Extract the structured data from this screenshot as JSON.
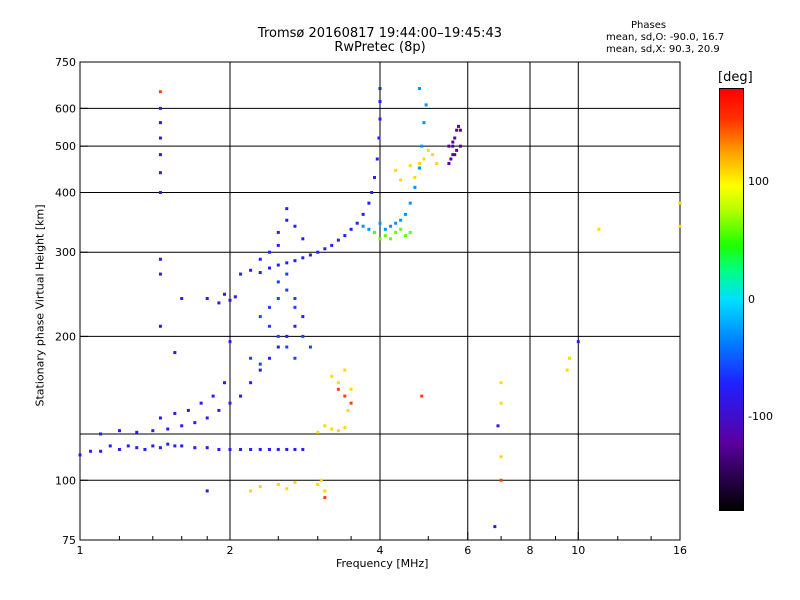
{
  "chart_data": {
    "type": "scatter",
    "title": "Tromsø 20160817 19:44:00–19:45:43",
    "subtitle": "RwPretec (8p)",
    "xlabel": "Frequency [MHz]",
    "ylabel": "Stationary phase Virtual Height [km]",
    "x_scale": "log",
    "y_scale": "log",
    "xlim": [
      1,
      16
    ],
    "ylim": [
      75,
      750
    ],
    "grid": true,
    "x_ticks": [
      {
        "value": 1,
        "label": "1"
      },
      {
        "value": 2,
        "label": "2"
      },
      {
        "value": 4,
        "label": "4"
      },
      {
        "value": 6,
        "label": "6"
      },
      {
        "value": 8,
        "label": "8"
      },
      {
        "value": 10,
        "label": "10"
      },
      {
        "value": 16,
        "label": "16"
      }
    ],
    "x_minor_ticks": [
      1.2,
      1.4,
      1.6,
      1.8,
      2.5,
      3,
      3.5,
      5,
      7,
      9,
      12,
      14
    ],
    "y_ticks": [
      {
        "value": 75,
        "label": "75"
      },
      {
        "value": 100,
        "label": "100"
      },
      {
        "value": 200,
        "label": "200"
      },
      {
        "value": 300,
        "label": "300"
      },
      {
        "value": 400,
        "label": "400"
      },
      {
        "value": 500,
        "label": "500"
      },
      {
        "value": 600,
        "label": "600"
      },
      {
        "value": 750,
        "label": "750"
      }
    ],
    "y_extra_grid": [
      125
    ],
    "colorbar": {
      "label": "[deg]",
      "range": [
        -180,
        180
      ],
      "ticks": [
        {
          "value": 100,
          "label": "100"
        },
        {
          "value": 0,
          "label": "0"
        },
        {
          "value": -100,
          "label": "-100"
        }
      ]
    },
    "stats": {
      "title": "Phases",
      "line1": "mean, sd,O: -90.0, 16.7",
      "line2": "mean, sd,X:  90.3, 20.9"
    },
    "series": [
      {
        "phase": -115,
        "points": [
          [
            1.0,
            113
          ],
          [
            1.05,
            115
          ],
          [
            1.1,
            115
          ],
          [
            1.15,
            118
          ],
          [
            1.2,
            116
          ],
          [
            1.25,
            118
          ],
          [
            1.3,
            117
          ],
          [
            1.35,
            116
          ],
          [
            1.4,
            118
          ],
          [
            1.45,
            117
          ],
          [
            1.5,
            119
          ],
          [
            1.55,
            118
          ],
          [
            1.6,
            118
          ],
          [
            1.7,
            117
          ],
          [
            1.8,
            117
          ],
          [
            1.9,
            116
          ],
          [
            2.0,
            116
          ],
          [
            2.1,
            116
          ],
          [
            2.2,
            116
          ],
          [
            2.3,
            116
          ],
          [
            2.4,
            116
          ],
          [
            2.5,
            116
          ],
          [
            2.6,
            116
          ],
          [
            2.7,
            116
          ],
          [
            2.8,
            116
          ],
          [
            1.1,
            125
          ],
          [
            1.2,
            127
          ],
          [
            1.3,
            126
          ],
          [
            1.4,
            127
          ],
          [
            1.5,
            128
          ],
          [
            1.6,
            130
          ],
          [
            1.7,
            132
          ],
          [
            1.8,
            135
          ],
          [
            1.9,
            140
          ],
          [
            2.0,
            145
          ],
          [
            2.1,
            150
          ],
          [
            2.2,
            160
          ],
          [
            2.3,
            170
          ],
          [
            2.4,
            180
          ],
          [
            2.5,
            190
          ],
          [
            2.6,
            200
          ],
          [
            2.7,
            210
          ],
          [
            2.8,
            220
          ],
          [
            1.45,
            135
          ],
          [
            1.55,
            138
          ],
          [
            1.65,
            140
          ],
          [
            1.75,
            145
          ],
          [
            1.85,
            150
          ],
          [
            1.95,
            160
          ]
        ]
      },
      {
        "phase": -110,
        "points": [
          [
            2.1,
            270
          ],
          [
            2.2,
            275
          ],
          [
            2.3,
            272
          ],
          [
            2.4,
            278
          ],
          [
            2.5,
            282
          ],
          [
            2.6,
            285
          ],
          [
            2.7,
            288
          ],
          [
            2.8,
            292
          ],
          [
            2.9,
            296
          ],
          [
            3.0,
            300
          ],
          [
            3.1,
            305
          ],
          [
            3.2,
            310
          ],
          [
            3.3,
            318
          ],
          [
            3.4,
            325
          ],
          [
            3.5,
            335
          ],
          [
            3.6,
            345
          ],
          [
            3.7,
            360
          ],
          [
            3.8,
            380
          ],
          [
            3.85,
            400
          ],
          [
            3.9,
            430
          ],
          [
            3.95,
            470
          ],
          [
            3.98,
            520
          ],
          [
            4.0,
            570
          ],
          [
            4.0,
            620
          ],
          [
            4.0,
            660
          ],
          [
            2.3,
            290
          ],
          [
            2.4,
            300
          ],
          [
            2.5,
            310
          ],
          [
            2.5,
            330
          ],
          [
            2.6,
            350
          ],
          [
            2.6,
            370
          ],
          [
            2.7,
            340
          ],
          [
            2.8,
            320
          ]
        ]
      },
      {
        "phase": -120,
        "points": [
          [
            1.45,
            600
          ],
          [
            1.45,
            560
          ],
          [
            1.45,
            520
          ],
          [
            1.45,
            480
          ],
          [
            1.45,
            440
          ],
          [
            1.45,
            400
          ],
          [
            1.45,
            290
          ],
          [
            1.45,
            270
          ],
          [
            1.45,
            210
          ],
          [
            1.55,
            185
          ],
          [
            1.6,
            240
          ],
          [
            1.8,
            240
          ],
          [
            1.9,
            235
          ],
          [
            1.95,
            245
          ],
          [
            2.0,
            238
          ],
          [
            2.05,
            242
          ],
          [
            1.8,
            95
          ],
          [
            2.0,
            195
          ],
          [
            6.8,
            80
          ],
          [
            6.9,
            130
          ],
          [
            10,
            195
          ]
        ]
      },
      {
        "phase": -95,
        "points": [
          [
            2.3,
            220
          ],
          [
            2.4,
            230
          ],
          [
            2.5,
            240
          ],
          [
            2.5,
            260
          ],
          [
            2.6,
            250
          ],
          [
            2.6,
            270
          ],
          [
            2.7,
            240
          ],
          [
            2.7,
            230
          ],
          [
            2.4,
            210
          ],
          [
            2.5,
            200
          ],
          [
            2.6,
            190
          ],
          [
            2.7,
            180
          ],
          [
            2.8,
            200
          ],
          [
            2.9,
            190
          ],
          [
            2.2,
            180
          ],
          [
            2.3,
            175
          ]
        ]
      },
      {
        "phase": -60,
        "points": [
          [
            3.7,
            340
          ],
          [
            3.8,
            335
          ],
          [
            3.9,
            330
          ],
          [
            4.0,
            345
          ],
          [
            4.1,
            335
          ],
          [
            4.2,
            340
          ],
          [
            4.3,
            345
          ],
          [
            4.4,
            350
          ],
          [
            4.5,
            360
          ],
          [
            4.6,
            380
          ],
          [
            4.7,
            410
          ],
          [
            4.8,
            450
          ],
          [
            4.85,
            500
          ],
          [
            4.9,
            560
          ],
          [
            4.95,
            610
          ],
          [
            4.8,
            660
          ]
        ]
      },
      {
        "phase": 45,
        "points": [
          [
            3.9,
            330
          ],
          [
            4.0,
            320
          ],
          [
            4.1,
            325
          ],
          [
            4.2,
            320
          ],
          [
            4.3,
            330
          ],
          [
            4.4,
            335
          ],
          [
            4.5,
            325
          ],
          [
            4.6,
            330
          ]
        ]
      },
      {
        "phase": 100,
        "points": [
          [
            4.7,
            430
          ],
          [
            4.8,
            460
          ],
          [
            4.9,
            470
          ],
          [
            5.0,
            490
          ],
          [
            5.1,
            480
          ],
          [
            5.2,
            460
          ],
          [
            4.6,
            455
          ],
          [
            4.4,
            425
          ],
          [
            4.3,
            445
          ],
          [
            3.1,
            130
          ],
          [
            3.2,
            128
          ],
          [
            3.3,
            127
          ],
          [
            3.4,
            129
          ],
          [
            3.0,
            126
          ],
          [
            3.2,
            165
          ],
          [
            3.3,
            160
          ],
          [
            3.4,
            170
          ],
          [
            3.5,
            155
          ],
          [
            3.45,
            140
          ],
          [
            2.5,
            98
          ],
          [
            2.6,
            96
          ],
          [
            2.7,
            99
          ],
          [
            3.0,
            98
          ],
          [
            3.1,
            95
          ],
          [
            3.05,
            100
          ],
          [
            2.2,
            95
          ],
          [
            2.3,
            97
          ],
          [
            7.0,
            145
          ],
          [
            7.0,
            160
          ],
          [
            7.0,
            112
          ],
          [
            9.5,
            170
          ],
          [
            9.6,
            180
          ],
          [
            11.0,
            335
          ],
          [
            16,
            380
          ],
          [
            16,
            340
          ]
        ]
      },
      {
        "phase": -150,
        "points": [
          [
            5.5,
            460
          ],
          [
            5.55,
            470
          ],
          [
            5.6,
            480
          ],
          [
            5.6,
            500
          ],
          [
            5.65,
            520
          ],
          [
            5.7,
            540
          ],
          [
            5.75,
            550
          ],
          [
            5.8,
            540
          ],
          [
            5.5,
            500
          ],
          [
            5.6,
            510
          ],
          [
            5.7,
            490
          ],
          [
            5.8,
            500
          ],
          [
            5.65,
            480
          ]
        ]
      },
      {
        "phase": 160,
        "points": [
          [
            3.3,
            155
          ],
          [
            3.4,
            150
          ],
          [
            3.5,
            145
          ],
          [
            4.85,
            150
          ],
          [
            3.1,
            92
          ],
          [
            1.45,
            650
          ],
          [
            7.0,
            100
          ]
        ]
      }
    ]
  }
}
